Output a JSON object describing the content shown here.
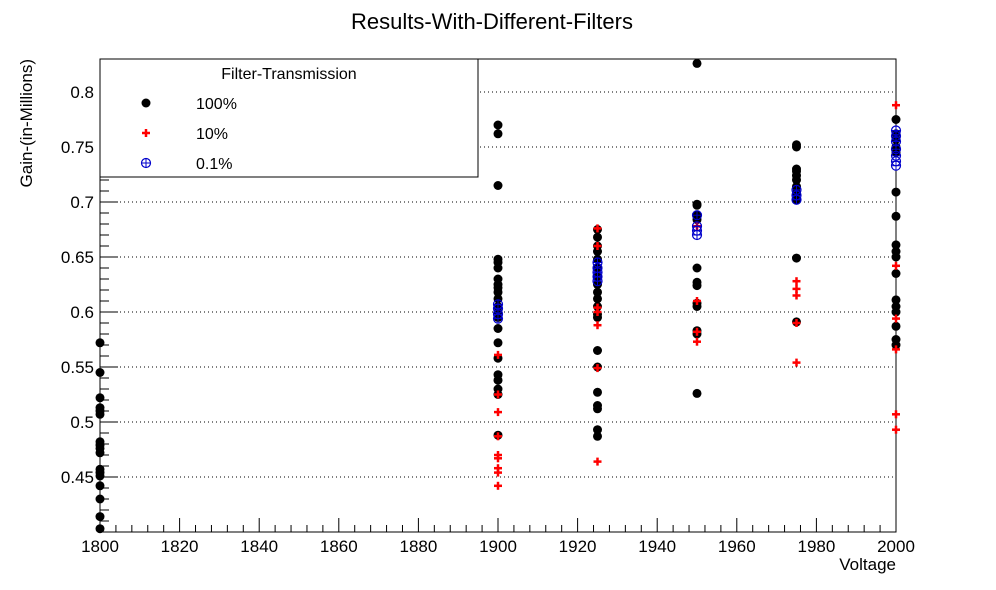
{
  "chart_data": {
    "type": "scatter",
    "title": "Results-With-Different-Filters",
    "xlabel": "Voltage",
    "ylabel": "Gain-(in-Millions)",
    "xlim": [
      1800,
      2000
    ],
    "ylim": [
      0.4,
      0.83
    ],
    "x_ticks": [
      1800,
      1820,
      1840,
      1860,
      1880,
      1900,
      1920,
      1940,
      1960,
      1980,
      2000
    ],
    "y_ticks": [
      0.45,
      0.5,
      0.55,
      0.6,
      0.65,
      0.7,
      0.75,
      0.8
    ],
    "x_tick_labels": [
      "1800",
      "1820",
      "1840",
      "1860",
      "1880",
      "1900",
      "1920",
      "1940",
      "1960",
      "1980",
      "2000"
    ],
    "y_tick_labels": [
      "0.45",
      "0.5",
      "0.55",
      "0.6",
      "0.65",
      "0.7",
      "0.75",
      "0.8"
    ],
    "grid": "horizontal dotted",
    "legend": {
      "title": "Filter-Transmission",
      "placement": "top-left"
    },
    "series": [
      {
        "name": "100%",
        "color": "#000000",
        "marker": "filled-circle",
        "points": [
          [
            1800,
            0.572
          ],
          [
            1800,
            0.545
          ],
          [
            1800,
            0.522
          ],
          [
            1800,
            0.513
          ],
          [
            1800,
            0.51
          ],
          [
            1800,
            0.507
          ],
          [
            1800,
            0.482
          ],
          [
            1800,
            0.479
          ],
          [
            1800,
            0.476
          ],
          [
            1800,
            0.472
          ],
          [
            1800,
            0.457
          ],
          [
            1800,
            0.454
          ],
          [
            1800,
            0.451
          ],
          [
            1800,
            0.442
          ],
          [
            1800,
            0.43
          ],
          [
            1800,
            0.414
          ],
          [
            1800,
            0.403
          ],
          [
            1900,
            0.77
          ],
          [
            1900,
            0.762
          ],
          [
            1900,
            0.715
          ],
          [
            1900,
            0.648
          ],
          [
            1900,
            0.645
          ],
          [
            1900,
            0.64
          ],
          [
            1900,
            0.63
          ],
          [
            1900,
            0.625
          ],
          [
            1900,
            0.622
          ],
          [
            1900,
            0.618
          ],
          [
            1900,
            0.612
          ],
          [
            1900,
            0.605
          ],
          [
            1900,
            0.6
          ],
          [
            1900,
            0.595
          ],
          [
            1900,
            0.585
          ],
          [
            1900,
            0.572
          ],
          [
            1900,
            0.558
          ],
          [
            1900,
            0.543
          ],
          [
            1900,
            0.538
          ],
          [
            1900,
            0.53
          ],
          [
            1900,
            0.525
          ],
          [
            1900,
            0.488
          ],
          [
            1925,
            0.675
          ],
          [
            1925,
            0.668
          ],
          [
            1925,
            0.66
          ],
          [
            1925,
            0.655
          ],
          [
            1925,
            0.648
          ],
          [
            1925,
            0.64
          ],
          [
            1925,
            0.632
          ],
          [
            1925,
            0.625
          ],
          [
            1925,
            0.618
          ],
          [
            1925,
            0.612
          ],
          [
            1925,
            0.605
          ],
          [
            1925,
            0.598
          ],
          [
            1925,
            0.595
          ],
          [
            1925,
            0.565
          ],
          [
            1925,
            0.55
          ],
          [
            1925,
            0.527
          ],
          [
            1925,
            0.515
          ],
          [
            1925,
            0.512
          ],
          [
            1925,
            0.493
          ],
          [
            1925,
            0.487
          ],
          [
            1950,
            0.826
          ],
          [
            1950,
            0.698
          ],
          [
            1950,
            0.697
          ],
          [
            1950,
            0.688
          ],
          [
            1950,
            0.684
          ],
          [
            1950,
            0.64
          ],
          [
            1950,
            0.627
          ],
          [
            1950,
            0.624
          ],
          [
            1950,
            0.608
          ],
          [
            1950,
            0.605
          ],
          [
            1950,
            0.583
          ],
          [
            1950,
            0.58
          ],
          [
            1950,
            0.526
          ],
          [
            1975,
            0.752
          ],
          [
            1975,
            0.75
          ],
          [
            1975,
            0.73
          ],
          [
            1975,
            0.728
          ],
          [
            1975,
            0.724
          ],
          [
            1975,
            0.72
          ],
          [
            1975,
            0.714
          ],
          [
            1975,
            0.708
          ],
          [
            1975,
            0.702
          ],
          [
            1975,
            0.649
          ],
          [
            1975,
            0.591
          ],
          [
            2000,
            0.775
          ],
          [
            2000,
            0.762
          ],
          [
            2000,
            0.757
          ],
          [
            2000,
            0.75
          ],
          [
            2000,
            0.745
          ],
          [
            2000,
            0.709
          ],
          [
            2000,
            0.687
          ],
          [
            2000,
            0.661
          ],
          [
            2000,
            0.655
          ],
          [
            2000,
            0.65
          ],
          [
            2000,
            0.635
          ],
          [
            2000,
            0.611
          ],
          [
            2000,
            0.605
          ],
          [
            2000,
            0.6
          ],
          [
            2000,
            0.587
          ],
          [
            2000,
            0.575
          ],
          [
            2000,
            0.57
          ]
        ]
      },
      {
        "name": "10%",
        "color": "#ff0000",
        "marker": "plus",
        "points": [
          [
            1900,
            0.561
          ],
          [
            1900,
            0.525
          ],
          [
            1900,
            0.509
          ],
          [
            1900,
            0.487
          ],
          [
            1900,
            0.47
          ],
          [
            1900,
            0.467
          ],
          [
            1900,
            0.458
          ],
          [
            1900,
            0.454
          ],
          [
            1900,
            0.442
          ],
          [
            1925,
            0.676
          ],
          [
            1925,
            0.66
          ],
          [
            1925,
            0.604
          ],
          [
            1925,
            0.6
          ],
          [
            1925,
            0.588
          ],
          [
            1925,
            0.549
          ],
          [
            1925,
            0.464
          ],
          [
            1950,
            0.678
          ],
          [
            1950,
            0.61
          ],
          [
            1950,
            0.582
          ],
          [
            1950,
            0.573
          ],
          [
            1975,
            0.628
          ],
          [
            1975,
            0.621
          ],
          [
            1975,
            0.615
          ],
          [
            1975,
            0.59
          ],
          [
            1975,
            0.554
          ],
          [
            2000,
            0.788
          ],
          [
            2000,
            0.642
          ],
          [
            2000,
            0.594
          ],
          [
            2000,
            0.566
          ],
          [
            2000,
            0.507
          ],
          [
            2000,
            0.493
          ]
        ]
      },
      {
        "name": "0.1%",
        "color": "#0000cc",
        "marker": "circle-plus",
        "points": [
          [
            1900,
            0.607
          ],
          [
            1900,
            0.603
          ],
          [
            1900,
            0.598
          ],
          [
            1900,
            0.594
          ],
          [
            1925,
            0.645
          ],
          [
            1925,
            0.64
          ],
          [
            1925,
            0.636
          ],
          [
            1925,
            0.632
          ],
          [
            1925,
            0.628
          ],
          [
            1950,
            0.688
          ],
          [
            1950,
            0.678
          ],
          [
            1950,
            0.674
          ],
          [
            1950,
            0.67
          ],
          [
            1975,
            0.711
          ],
          [
            1975,
            0.706
          ],
          [
            1975,
            0.702
          ],
          [
            2000,
            0.765
          ],
          [
            2000,
            0.76
          ],
          [
            2000,
            0.755
          ],
          [
            2000,
            0.748
          ],
          [
            2000,
            0.742
          ],
          [
            2000,
            0.737
          ],
          [
            2000,
            0.733
          ]
        ]
      }
    ]
  }
}
